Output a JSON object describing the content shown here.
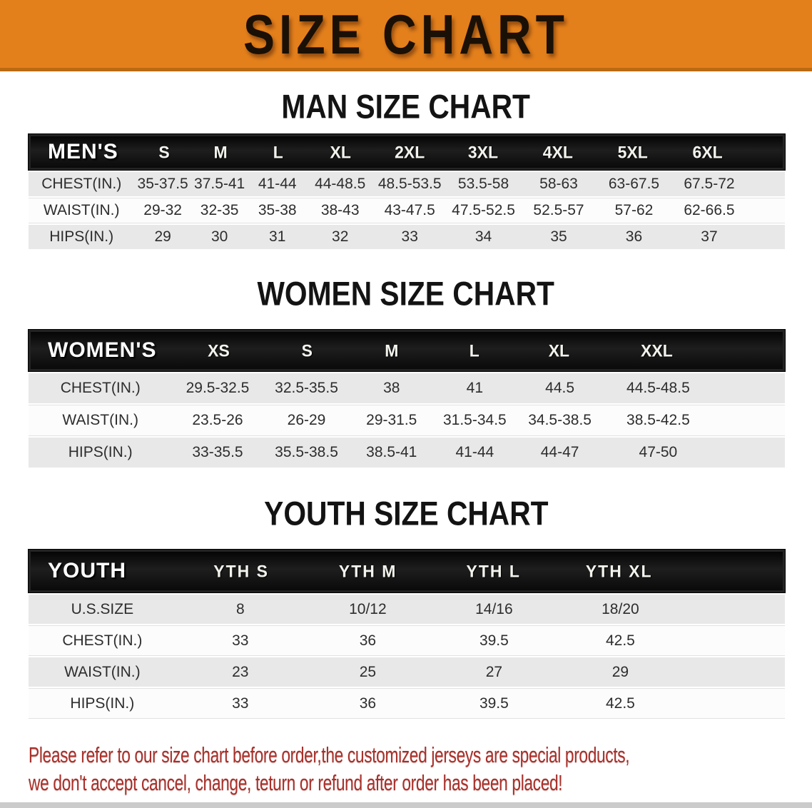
{
  "banner": {
    "title": "SIZE CHART",
    "background_color": "#E4801C",
    "title_color": "#1A1006"
  },
  "sections": [
    {
      "id": "men",
      "heading": "MAN SIZE CHART",
      "table": {
        "corner_label": "MEN'S",
        "columns": [
          "S",
          "M",
          "L",
          "XL",
          "2XL",
          "3XL",
          "4XL",
          "5XL",
          "6XL"
        ],
        "rows": [
          {
            "label": "CHEST(IN.)",
            "values": [
              "35-37.5",
              "37.5-41",
              "41-44",
              "44-48.5",
              "48.5-53.5",
              "53.5-58",
              "58-63",
              "63-67.5",
              "67.5-72"
            ]
          },
          {
            "label": "WAIST(IN.)",
            "values": [
              "29-32",
              "32-35",
              "35-38",
              "38-43",
              "43-47.5",
              "47.5-52.5",
              "52.5-57",
              "57-62",
              "62-66.5"
            ]
          },
          {
            "label": "HIPS(IN.)",
            "values": [
              "29",
              "30",
              "31",
              "32",
              "33",
              "34",
              "35",
              "36",
              "37"
            ]
          }
        ]
      }
    },
    {
      "id": "women",
      "heading": "WOMEN SIZE CHART",
      "table": {
        "corner_label": "WOMEN'S",
        "columns": [
          "XS",
          "S",
          "M",
          "L",
          "XL",
          "XXL"
        ],
        "rows": [
          {
            "label": "CHEST(IN.)",
            "values": [
              "29.5-32.5",
              "32.5-35.5",
              "38",
              "41",
              "44.5",
              "44.5-48.5"
            ]
          },
          {
            "label": "WAIST(IN.)",
            "values": [
              "23.5-26",
              "26-29",
              "29-31.5",
              "31.5-34.5",
              "34.5-38.5",
              "38.5-42.5"
            ]
          },
          {
            "label": "HIPS(IN.)",
            "values": [
              "33-35.5",
              "35.5-38.5",
              "38.5-41",
              "41-44",
              "44-47",
              "47-50"
            ]
          }
        ]
      }
    },
    {
      "id": "youth",
      "heading": "YOUTH SIZE CHART",
      "table": {
        "corner_label": "YOUTH",
        "columns": [
          "YTH S",
          "YTH M",
          "YTH L",
          "YTH XL"
        ],
        "rows": [
          {
            "label": "U.S.SIZE",
            "values": [
              "8",
              "10/12",
              "14/16",
              "18/20"
            ]
          },
          {
            "label": "CHEST(IN.)",
            "values": [
              "33",
              "36",
              "39.5",
              "42.5"
            ]
          },
          {
            "label": "WAIST(IN.)",
            "values": [
              "23",
              "25",
              "27",
              "29"
            ]
          },
          {
            "label": "HIPS(IN.)",
            "values": [
              "33",
              "36",
              "39.5",
              "42.5"
            ]
          }
        ]
      }
    }
  ],
  "footer": {
    "line1": "Please refer to our size chart before order,the customized jerseys are special products,",
    "line2": "we don't accept cancel, change, teturn or refund after order has been placed!",
    "text_color": "#A8302A"
  },
  "colors": {
    "banner_orange": "#E4801C",
    "banner_border": "#B96A12",
    "header_bar_black": "#0E0E0E",
    "row_stripe_gray": "#E8E8E8",
    "table_text": "#2D2D2D",
    "disclaimer_red": "#A8302A"
  }
}
